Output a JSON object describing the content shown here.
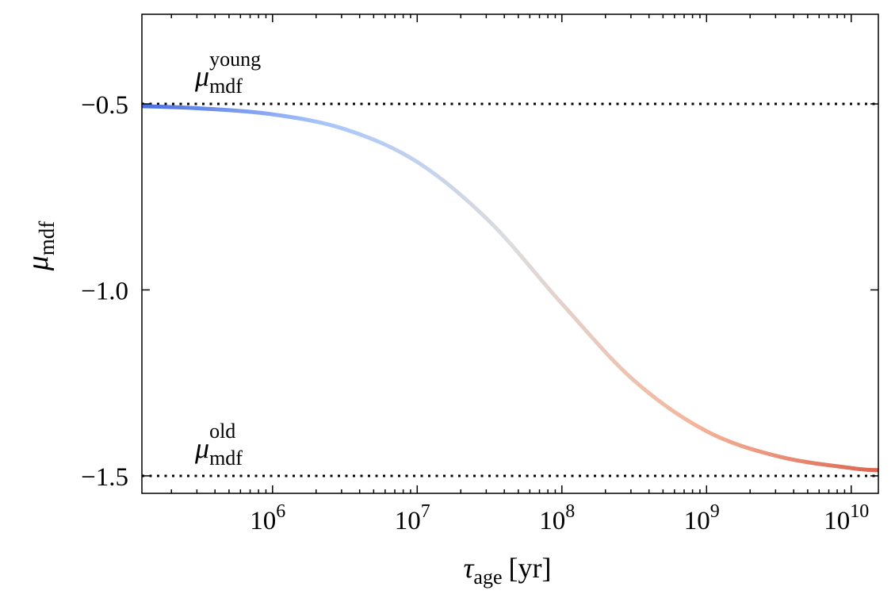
{
  "chart_data": {
    "type": "line",
    "x_label": {
      "symbol": "τ",
      "subscript": "age",
      "unit": "[yr]"
    },
    "y_label": {
      "symbol": "μ",
      "subscript": "mdf"
    },
    "x_log": true,
    "xlim": [
      125000,
      15400000000
    ],
    "ylim": [
      -1.547,
      -0.259
    ],
    "xticks": [
      {
        "value": 1000000,
        "label": "10",
        "exponent": "6"
      },
      {
        "value": 10000000,
        "label": "10",
        "exponent": "7"
      },
      {
        "value": 100000000,
        "label": "10",
        "exponent": "8"
      },
      {
        "value": 1000000000,
        "label": "10",
        "exponent": "9"
      },
      {
        "value": 10000000000,
        "label": "10",
        "exponent": "10"
      }
    ],
    "xminorticks": [
      200000,
      300000,
      400000,
      500000,
      600000,
      700000,
      800000,
      900000,
      2000000,
      3000000,
      4000000,
      5000000,
      6000000,
      7000000,
      8000000,
      9000000,
      20000000,
      30000000,
      40000000,
      50000000,
      60000000,
      70000000,
      80000000,
      90000000,
      200000000,
      300000000,
      400000000,
      500000000,
      600000000,
      700000000,
      800000000,
      900000000,
      2000000000,
      3000000000,
      4000000000,
      5000000000,
      6000000000,
      7000000000,
      8000000000,
      9000000000
    ],
    "yticks": [
      {
        "value": -0.5,
        "label": "−0.5"
      },
      {
        "value": -1.0,
        "label": "−1.0"
      },
      {
        "value": -1.5,
        "label": "−1.5"
      }
    ],
    "grid": false,
    "x": [
      125000,
      316000,
      1000000,
      3160000,
      10000000,
      31600000,
      100000000,
      316000000,
      1000000000,
      3160000000,
      10000000000,
      15400000000
    ],
    "values": [
      -0.506,
      -0.512,
      -0.528,
      -0.568,
      -0.656,
      -0.816,
      -1.037,
      -1.244,
      -1.38,
      -1.448,
      -1.479,
      -1.485
    ],
    "colors": [
      "#4a6ee0",
      "#a9c6fb",
      "#dcdddd",
      "#f5b59a",
      "#dd6450"
    ],
    "reference_lines": [
      {
        "value": -0.5,
        "symbol": "μ",
        "subscript": "mdf",
        "superscript": "young",
        "color": "#000000"
      },
      {
        "value": -1.5,
        "symbol": "μ",
        "subscript": "mdf",
        "superscript": "old",
        "color": "#000000"
      }
    ]
  }
}
